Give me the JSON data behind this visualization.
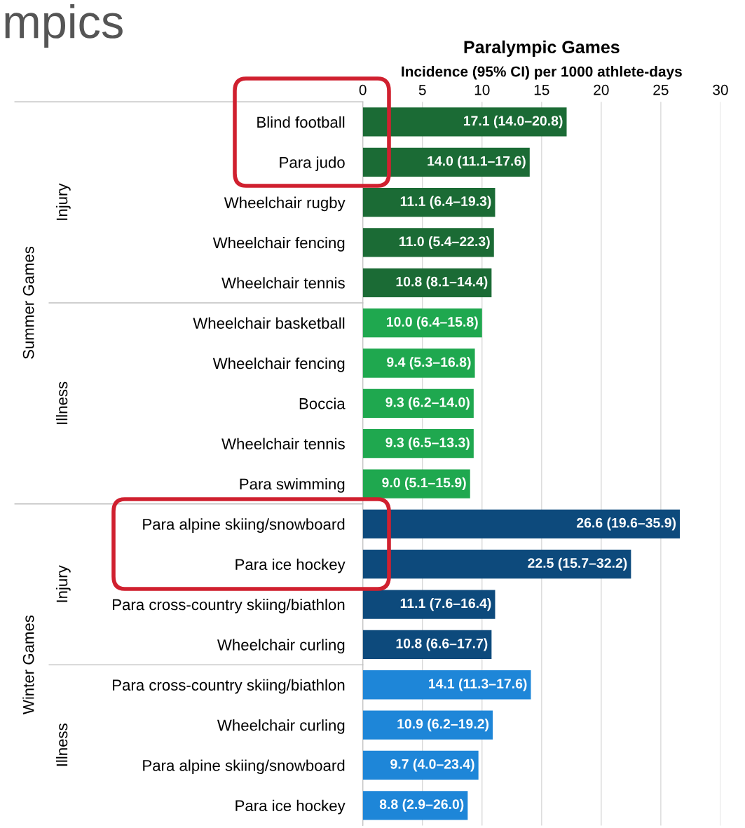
{
  "chart_data": {
    "type": "bar",
    "orientation": "horizontal",
    "title": "Paralympic Games",
    "xlabel": "Incidence (95% CI) per 1000 athlete-days",
    "categories": [
      "Blind football",
      "Para judo",
      "Wheelchair rugby",
      "Wheelchair fencing",
      "Wheelchair tennis",
      "Wheelchair basketball",
      "Wheelchair fencing",
      "Boccia",
      "Wheelchair tennis",
      "Para swimming",
      "Para alpine skiing/snowboard",
      "Para ice hockey",
      "Para cross-country skiing/biathlon",
      "Wheelchair curling",
      "Para cross-country skiing/biathlon",
      "Wheelchair curling",
      "Para alpine skiing/snowboard",
      "Para ice hockey"
    ],
    "values": [
      17.1,
      14.0,
      11.1,
      11.0,
      10.8,
      10.0,
      9.4,
      9.3,
      9.3,
      9.0,
      26.6,
      22.5,
      11.1,
      10.8,
      14.1,
      10.9,
      9.7,
      8.8
    ],
    "colors": [
      "#1b6b35",
      "#1b6b35",
      "#1b6b35",
      "#1b6b35",
      "#1b6b35",
      "#1fa84f",
      "#1fa84f",
      "#1fa84f",
      "#1fa84f",
      "#1fa84f",
      "#0d4a7c",
      "#0d4a7c",
      "#0d4a7c",
      "#0d4a7c",
      "#1e86d8",
      "#1e86d8",
      "#1e86d8",
      "#1e86d8"
    ],
    "value_labels": [
      "17.1 (14.0–20.8)",
      "14.0 (11.1–17.6)",
      "11.1 (6.4–19.3)",
      "11.0 (5.4–22.3)",
      "10.8 (8.1–14.4)",
      "10.0 (6.4–15.8)",
      "9.4 (5.3–16.8)",
      "9.3 (6.2–14.0)",
      "9.3 (6.5–13.3)",
      "9.0 (5.1–15.9)",
      "26.6 (19.6–35.9)",
      "22.5 (15.7–32.2)",
      "11.1 (7.6–16.4)",
      "10.8 (6.6–17.7)",
      "14.1 (11.3–17.6)",
      "10.9 (6.2–19.2)",
      "9.7 (4.0–23.4)",
      "8.8 (2.9–26.0)"
    ],
    "xlim": [
      0,
      30
    ],
    "xticks": [
      0,
      5,
      10,
      15,
      20,
      25,
      30
    ],
    "grid": "x",
    "annotations": [
      "mpics",
      "Summer Games",
      "Injury",
      "Illness",
      "Winter Games",
      "Injury",
      "Illness"
    ]
  }
}
